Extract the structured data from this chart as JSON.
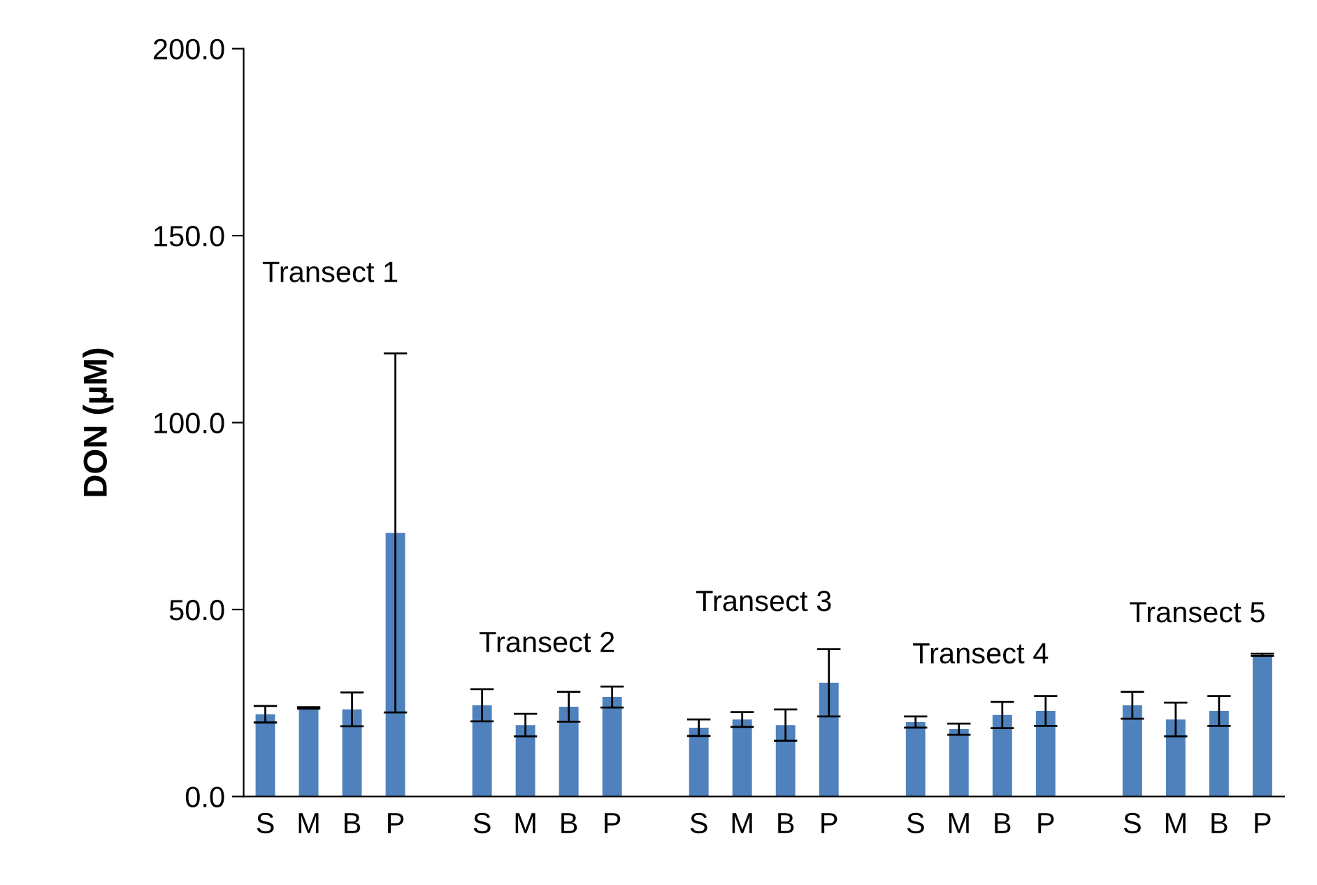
{
  "chart_data": {
    "type": "bar",
    "ylabel": "DON (µM)",
    "categories": [
      "S",
      "M",
      "B",
      "P",
      null,
      "S",
      "M",
      "B",
      "P",
      null,
      "S",
      "M",
      "B",
      "P",
      null,
      "S",
      "M",
      "B",
      "P",
      null,
      "S",
      "M",
      "B",
      "P"
    ],
    "values": [
      22,
      23.7,
      23.3,
      70.5,
      null,
      24.4,
      19.1,
      24,
      26.6,
      null,
      18.4,
      20.6,
      19.1,
      30.4,
      null,
      19.9,
      18,
      21.8,
      22.9,
      null,
      24.4,
      20.6,
      22.9,
      37.9
    ],
    "errors": [
      2.2,
      0.2,
      4.5,
      48,
      null,
      4.3,
      3,
      4,
      2.8,
      null,
      2.2,
      2,
      4.2,
      9,
      null,
      1.5,
      1.5,
      3.5,
      4,
      null,
      3.6,
      4.5,
      4,
      0.3
    ],
    "color": "#4f81bd",
    "ylim": [
      0,
      200
    ],
    "yticks": [
      {
        "value": 0,
        "label": "0.0"
      },
      {
        "value": 50,
        "label": "50.0"
      },
      {
        "value": 100,
        "label": "100.0"
      },
      {
        "value": 150,
        "label": "150.0"
      },
      {
        "value": 200,
        "label": "200.0"
      }
    ],
    "grid": false,
    "legend": false,
    "annotations": [
      "Transect 1",
      "Transect 2",
      "Transect 3",
      "Transect 4",
      "Transect 5"
    ]
  }
}
